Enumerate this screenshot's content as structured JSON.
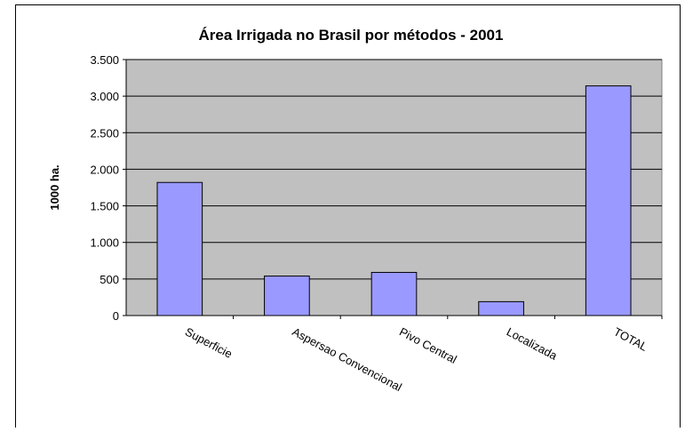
{
  "chart_data": {
    "type": "bar",
    "title": "Área Irrigada no Brasil por métodos - 2001",
    "ylabel": "1000 ha.",
    "categories": [
      "Superficie",
      "Aspersao Convencional",
      "Pivo Central",
      "Localizada",
      "TOTAL"
    ],
    "values": [
      1820,
      540,
      590,
      190,
      3140
    ],
    "color": "#9999ff",
    "ylim": [
      0,
      3500
    ],
    "yticks": [
      0,
      500,
      {
        "value": 1000,
        "label": "1.000"
      },
      {
        "value": 1500,
        "label": "1.500"
      },
      {
        "value": 2000,
        "label": "2.000"
      },
      {
        "value": 2500,
        "label": "2.500"
      },
      {
        "value": 3000,
        "label": "3.000"
      },
      {
        "value": 3500,
        "label": "3.500"
      }
    ],
    "grid": true
  }
}
